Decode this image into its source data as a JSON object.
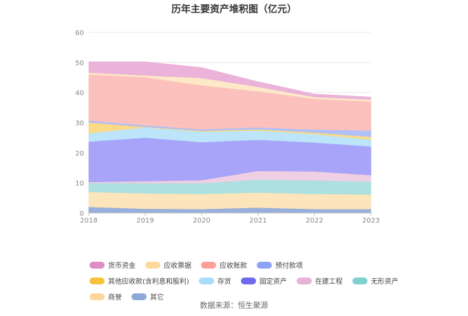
{
  "chart_data": {
    "type": "area",
    "stacked": true,
    "title": "历年主要资产堆积图（亿元）",
    "x": [
      "2018",
      "2019",
      "2020",
      "2021",
      "2022",
      "2023"
    ],
    "ylim": [
      0,
      60
    ],
    "yticks": [
      0,
      10,
      20,
      30,
      40,
      50,
      60
    ],
    "grid": true,
    "legend_position": "bottom",
    "series": [
      {
        "name": "其它",
        "color": "#8EA8DA",
        "values": [
          2.0,
          1.4,
          1.3,
          1.8,
          1.3,
          1.3
        ]
      },
      {
        "name": "商誉",
        "color": "#FCE3B5",
        "values": [
          5.0,
          5.1,
          5.0,
          5.0,
          5.0,
          4.9
        ]
      },
      {
        "name": "无形资产",
        "color": "#A5DEDD",
        "values": [
          3.0,
          3.4,
          3.6,
          4.3,
          4.5,
          4.2
        ]
      },
      {
        "name": "在建工程",
        "color": "#EECBE1",
        "values": [
          0.3,
          0.7,
          1.0,
          2.9,
          3.0,
          2.2
        ]
      },
      {
        "name": "固定资产",
        "color": "#A09CF8",
        "values": [
          13.4,
          14.4,
          12.6,
          10.3,
          9.6,
          9.5
        ]
      },
      {
        "name": "存货",
        "color": "#B6E3F9",
        "values": [
          2.8,
          3.4,
          3.5,
          3.1,
          2.8,
          2.3
        ]
      },
      {
        "name": "其他应收款(含利息和股利)",
        "color": "#FBD77E",
        "values": [
          3.6,
          0.2,
          0.3,
          0.4,
          0.5,
          0.9
        ]
      },
      {
        "name": "预付款项",
        "color": "#A9BCF8",
        "values": [
          0.6,
          0.5,
          0.5,
          0.6,
          1.0,
          2.1
        ]
      },
      {
        "name": "应收账款",
        "color": "#FCBCB7",
        "values": [
          15.3,
          16.0,
          14.6,
          12.0,
          10.2,
          9.6
        ]
      },
      {
        "name": "应收票据",
        "color": "#FDE6C3",
        "values": [
          0.6,
          0.6,
          2.4,
          1.5,
          0.6,
          0.7
        ]
      },
      {
        "name": "货币资金",
        "color": "#E9ADD6",
        "values": [
          3.6,
          4.5,
          3.5,
          1.7,
          1.0,
          0.8
        ]
      }
    ]
  },
  "legend_order": [
    "货币资金",
    "应收票据",
    "应收账款",
    "预付款项",
    "其他应收款(含利息和股利)",
    "存货",
    "固定资产",
    "在建工程",
    "无形资产",
    "商誉",
    "其它"
  ],
  "legend_colors": {
    "货币资金": "#DE8BC6",
    "应收票据": "#FDD9A0",
    "应收账款": "#FB9F97",
    "预付款项": "#8BA3F6",
    "其他应收款(含利息和股利)": "#F9C23C",
    "存货": "#A8DCF8",
    "固定资产": "#6E6AEE",
    "在建工程": "#E6B4D8",
    "无形资产": "#7FD1D0",
    "商誉": "#FCD79B",
    "其它": "#8EA8DA"
  },
  "source": "数据来源：恒生聚源"
}
